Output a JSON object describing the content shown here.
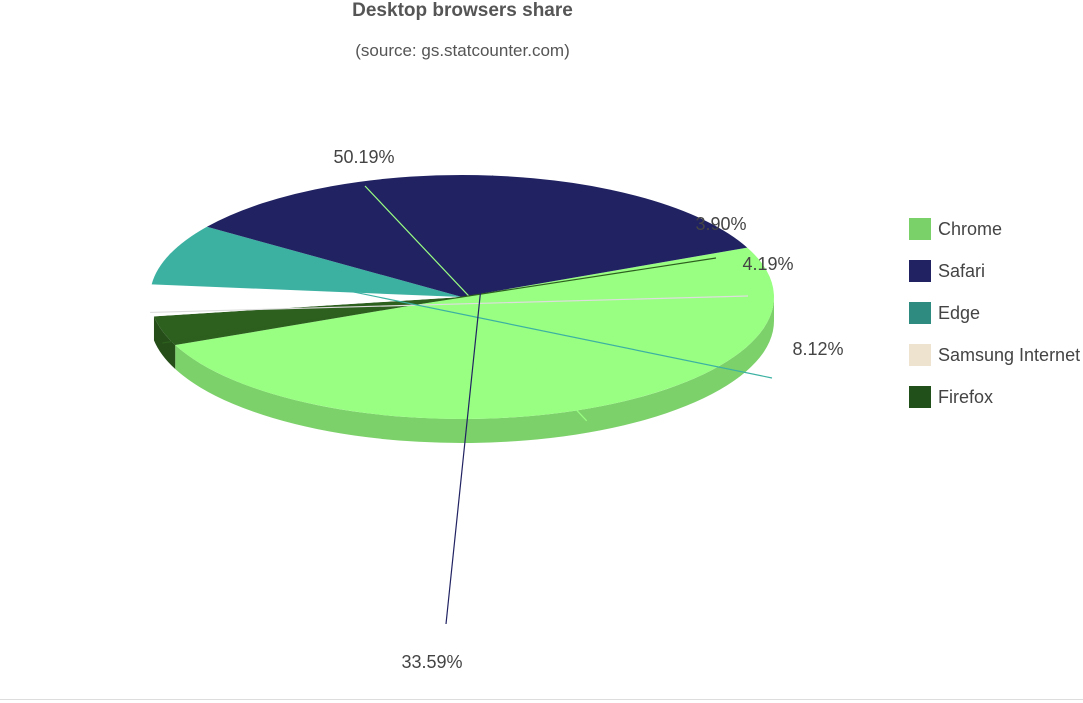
{
  "chart_data": {
    "type": "pie",
    "title": "Desktop browsers share",
    "subtitle": "(source: gs.statcounter.com)",
    "slices": [
      {
        "name": "Chrome",
        "value": 50.19,
        "label": "50.19%",
        "color": "#99ff82",
        "legend_color": "#7ad16a"
      },
      {
        "name": "Safari",
        "value": 33.59,
        "label": "33.59%",
        "color": "#202262",
        "legend_color": "#202262"
      },
      {
        "name": "Edge",
        "value": 8.12,
        "label": "8.12%",
        "color": "#3cb1a2",
        "legend_color": "#2e8b7f"
      },
      {
        "name": "Samsung Internet",
        "value": 4.19,
        "label": "4.19%",
        "color": "#ffffff",
        "legend_color": "#ede3cf"
      },
      {
        "name": "Firefox",
        "value": 3.9,
        "label": "3.90%",
        "color": "#2d5f1f",
        "legend_color": "#22501a"
      }
    ],
    "legend_position": "right",
    "style": "3d"
  }
}
